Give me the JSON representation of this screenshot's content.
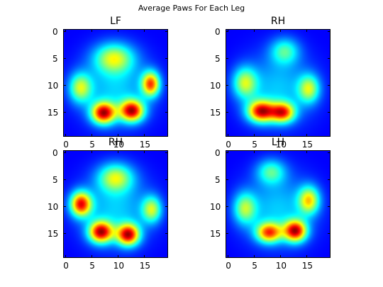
{
  "chart_data": {
    "suptitle": "Average Paws For Each Leg",
    "type": "heatmap",
    "colormap": "jet",
    "grid": false,
    "axes": [
      {
        "title": "LF",
        "xticks": [
          "0",
          "5",
          "10",
          "15"
        ],
        "yticks": [
          "0",
          "5",
          "10",
          "15"
        ],
        "xlim": [
          -0.5,
          19.5
        ],
        "ylim": [
          19.5,
          -0.5
        ],
        "blobs": [
          {
            "x": 9.2,
            "y": 4.9,
            "sx": 2.6,
            "sy": 1.9,
            "value": 0.55
          },
          {
            "x": 2.8,
            "y": 10.4,
            "sx": 1.5,
            "sy": 1.9,
            "value": 0.55
          },
          {
            "x": 7.2,
            "y": 15.1,
            "sx": 1.6,
            "sy": 1.4,
            "value": 1.0
          },
          {
            "x": 12.6,
            "y": 14.7,
            "sx": 1.6,
            "sy": 1.4,
            "value": 1.0
          },
          {
            "x": 16.2,
            "y": 9.7,
            "sx": 1.2,
            "sy": 1.6,
            "value": 0.85
          }
        ]
      },
      {
        "title": "RH",
        "xticks": [
          "0",
          "5",
          "10",
          "15"
        ],
        "yticks": [
          "0",
          "5",
          "10",
          "15"
        ],
        "xlim": [
          -0.5,
          19.5
        ],
        "ylim": [
          19.5,
          -0.5
        ],
        "blobs": [
          {
            "x": 10.8,
            "y": 3.6,
            "sx": 1.9,
            "sy": 1.7,
            "value": 0.4
          },
          {
            "x": 3.2,
            "y": 9.5,
            "sx": 1.6,
            "sy": 2.0,
            "value": 0.55
          },
          {
            "x": 6.3,
            "y": 14.8,
            "sx": 1.8,
            "sy": 1.4,
            "value": 1.0
          },
          {
            "x": 10.4,
            "y": 15.0,
            "sx": 1.6,
            "sy": 1.3,
            "value": 0.88
          },
          {
            "x": 15.4,
            "y": 10.6,
            "sx": 1.4,
            "sy": 1.8,
            "value": 0.55
          }
        ]
      },
      {
        "title": "RH",
        "xticks": [
          "0",
          "5",
          "10",
          "15"
        ],
        "yticks": [
          "0",
          "5",
          "10",
          "15"
        ],
        "xlim": [
          -0.5,
          19.5
        ],
        "ylim": [
          19.5,
          -0.5
        ],
        "blobs": [
          {
            "x": 9.5,
            "y": 4.6,
            "sx": 2.3,
            "sy": 1.8,
            "value": 0.55
          },
          {
            "x": 2.9,
            "y": 9.5,
            "sx": 1.4,
            "sy": 1.6,
            "value": 0.95
          },
          {
            "x": 6.7,
            "y": 14.7,
            "sx": 1.6,
            "sy": 1.4,
            "value": 1.0
          },
          {
            "x": 11.9,
            "y": 15.2,
            "sx": 1.5,
            "sy": 1.4,
            "value": 1.0
          },
          {
            "x": 16.4,
            "y": 10.5,
            "sx": 1.3,
            "sy": 1.7,
            "value": 0.55
          }
        ]
      },
      {
        "title": "LH",
        "xticks": [
          "0",
          "5",
          "10",
          "15"
        ],
        "yticks": [
          "0",
          "5",
          "10",
          "15"
        ],
        "xlim": [
          -0.5,
          19.5
        ],
        "ylim": [
          19.5,
          -0.5
        ],
        "blobs": [
          {
            "x": 8.2,
            "y": 3.5,
            "sx": 1.9,
            "sy": 1.6,
            "value": 0.4
          },
          {
            "x": 3.2,
            "y": 10.3,
            "sx": 1.5,
            "sy": 2.0,
            "value": 0.5
          },
          {
            "x": 7.8,
            "y": 14.8,
            "sx": 1.7,
            "sy": 1.3,
            "value": 0.82
          },
          {
            "x": 12.8,
            "y": 14.5,
            "sx": 1.5,
            "sy": 1.4,
            "value": 1.0
          },
          {
            "x": 15.4,
            "y": 8.8,
            "sx": 1.4,
            "sy": 1.8,
            "value": 0.65
          }
        ]
      }
    ]
  }
}
